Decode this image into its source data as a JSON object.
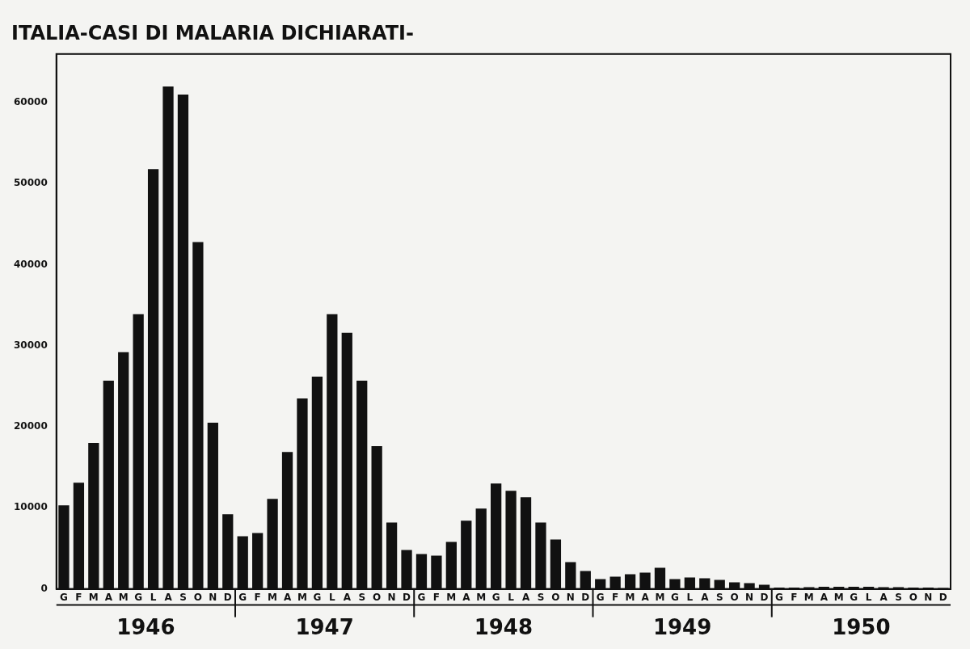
{
  "chart_data": {
    "type": "bar",
    "title": "ITALIA-CASI DI MALARIA DICHIARATI-",
    "categories": [
      "G",
      "F",
      "M",
      "A",
      "M",
      "G",
      "L",
      "A",
      "S",
      "O",
      "N",
      "D",
      "G",
      "F",
      "M",
      "A",
      "M",
      "G",
      "L",
      "A",
      "S",
      "O",
      "N",
      "D",
      "G",
      "F",
      "M",
      "A",
      "M",
      "G",
      "L",
      "A",
      "S",
      "O",
      "N",
      "D",
      "G",
      "F",
      "M",
      "A",
      "M",
      "G",
      "L",
      "A",
      "S",
      "O",
      "N",
      "D",
      "G",
      "F",
      "M",
      "A",
      "M",
      "G",
      "L",
      "A",
      "S",
      "O",
      "N",
      "D"
    ],
    "years": [
      "1946",
      "1947",
      "1948",
      "1949",
      "1950"
    ],
    "values": [
      10300,
      13100,
      18000,
      25700,
      29200,
      33900,
      51800,
      62000,
      61000,
      42800,
      20500,
      9200,
      6500,
      6900,
      11100,
      16900,
      23500,
      26200,
      33900,
      31600,
      25700,
      17600,
      8200,
      4800,
      4300,
      4100,
      5800,
      8400,
      9900,
      13000,
      12100,
      11300,
      8200,
      6100,
      3300,
      2200,
      1200,
      1500,
      1800,
      2000,
      2600,
      1200,
      1400,
      1300,
      1100,
      800,
      700,
      500,
      150,
      150,
      200,
      250,
      250,
      250,
      250,
      200,
      200,
      150,
      150,
      100
    ],
    "color": "#111111",
    "ylim": [
      0,
      66000
    ],
    "yticks": [
      0,
      10000,
      20000,
      30000,
      40000,
      50000,
      60000
    ],
    "grid": false
  }
}
